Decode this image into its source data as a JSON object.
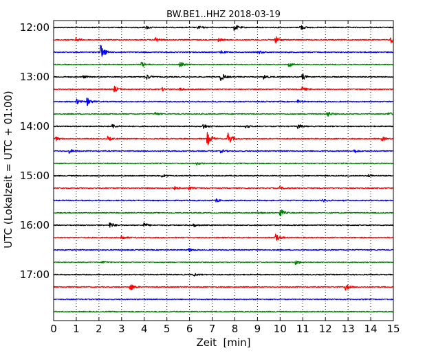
{
  "chart_data": {
    "type": "line",
    "title": "BW.BE1..HHZ 2018-03-19",
    "xlabel": "Zeit  [min]",
    "ylabel": "UTC (Lokalzeit = UTC + 01:00)",
    "xlim": [
      0,
      15
    ],
    "x_ticks": [
      "0",
      "1",
      "2",
      "3",
      "4",
      "5",
      "6",
      "7",
      "8",
      "9",
      "10",
      "11",
      "12",
      "13",
      "14",
      "15"
    ],
    "y_tick_labels": [
      "12:00",
      "13:00",
      "14:00",
      "15:00",
      "16:00",
      "17:00"
    ],
    "grid": "vertical dotted",
    "trace_interval_min": 15,
    "colors": [
      "#000000",
      "#ff0000",
      "#0000ff",
      "#008000"
    ],
    "series": [
      {
        "start": "12:00",
        "color": "#000000",
        "events": [
          {
            "t": 4.1,
            "a": 2
          },
          {
            "t": 6.4,
            "a": 2
          },
          {
            "t": 8.0,
            "a": 4
          },
          {
            "t": 10.9,
            "a": 4
          }
        ]
      },
      {
        "start": "12:15",
        "color": "#ff0000",
        "events": [
          {
            "t": 1.0,
            "a": 3
          },
          {
            "t": 4.5,
            "a": 3
          },
          {
            "t": 7.3,
            "a": 2
          },
          {
            "t": 9.8,
            "a": 5
          },
          {
            "t": 14.9,
            "a": 4
          }
        ]
      },
      {
        "start": "12:30",
        "color": "#0000ff",
        "events": [
          {
            "t": 2.1,
            "a": 10
          },
          {
            "t": 7.4,
            "a": 2
          },
          {
            "t": 9.1,
            "a": 2
          }
        ]
      },
      {
        "start": "12:45",
        "color": "#008000",
        "events": [
          {
            "t": 3.9,
            "a": 3
          },
          {
            "t": 5.6,
            "a": 3
          },
          {
            "t": 10.4,
            "a": 3
          }
        ]
      },
      {
        "start": "13:00",
        "color": "#000000",
        "events": [
          {
            "t": 1.3,
            "a": 2
          },
          {
            "t": 4.1,
            "a": 4
          },
          {
            "t": 7.4,
            "a": 6
          },
          {
            "t": 9.3,
            "a": 3
          },
          {
            "t": 11.0,
            "a": 4
          }
        ]
      },
      {
        "start": "13:15",
        "color": "#ff0000",
        "events": [
          {
            "t": 2.7,
            "a": 4
          },
          {
            "t": 4.8,
            "a": 2
          },
          {
            "t": 5.6,
            "a": 2
          },
          {
            "t": 11.0,
            "a": 3
          }
        ]
      },
      {
        "start": "13:30",
        "color": "#0000ff",
        "events": [
          {
            "t": 1.0,
            "a": 4
          },
          {
            "t": 1.5,
            "a": 5
          },
          {
            "t": 10.8,
            "a": 2
          }
        ]
      },
      {
        "start": "13:45",
        "color": "#008000",
        "events": [
          {
            "t": 4.5,
            "a": 2
          },
          {
            "t": 12.1,
            "a": 4
          },
          {
            "t": 14.8,
            "a": 2
          }
        ]
      },
      {
        "start": "14:00",
        "color": "#000000",
        "events": [
          {
            "t": 2.6,
            "a": 3
          },
          {
            "t": 6.6,
            "a": 4
          },
          {
            "t": 8.5,
            "a": 2
          },
          {
            "t": 10.8,
            "a": 3
          }
        ]
      },
      {
        "start": "14:15",
        "color": "#ff0000",
        "events": [
          {
            "t": 0.1,
            "a": 3
          },
          {
            "t": 2.4,
            "a": 3
          },
          {
            "t": 6.8,
            "a": 9
          },
          {
            "t": 7.7,
            "a": 10
          },
          {
            "t": 14.5,
            "a": 3
          }
        ]
      },
      {
        "start": "14:30",
        "color": "#0000ff",
        "events": [
          {
            "t": 0.7,
            "a": 3
          },
          {
            "t": 7.4,
            "a": 2
          },
          {
            "t": 13.3,
            "a": 2
          }
        ]
      },
      {
        "start": "14:45",
        "color": "#008000",
        "events": [
          {
            "t": 6.3,
            "a": 2
          }
        ]
      },
      {
        "start": "15:00",
        "color": "#000000",
        "events": [
          {
            "t": 4.8,
            "a": 2
          },
          {
            "t": 13.9,
            "a": 2
          }
        ]
      },
      {
        "start": "15:15",
        "color": "#ff0000",
        "events": [
          {
            "t": 5.3,
            "a": 3
          },
          {
            "t": 6.0,
            "a": 2
          },
          {
            "t": 10.0,
            "a": 2
          }
        ]
      },
      {
        "start": "15:30",
        "color": "#0000ff",
        "events": [
          {
            "t": 7.2,
            "a": 2
          },
          {
            "t": 11.9,
            "a": 2
          }
        ]
      },
      {
        "start": "15:45",
        "color": "#008000",
        "events": [
          {
            "t": 9.0,
            "a": 2
          },
          {
            "t": 10.0,
            "a": 6
          }
        ]
      },
      {
        "start": "16:00",
        "color": "#000000",
        "events": [
          {
            "t": 2.5,
            "a": 4
          },
          {
            "t": 4.0,
            "a": 3
          },
          {
            "t": 6.2,
            "a": 2
          }
        ]
      },
      {
        "start": "16:15",
        "color": "#ff0000",
        "events": [
          {
            "t": 3.0,
            "a": 3
          },
          {
            "t": 9.8,
            "a": 6
          }
        ]
      },
      {
        "start": "16:30",
        "color": "#0000ff",
        "events": [
          {
            "t": 6.0,
            "a": 2
          }
        ]
      },
      {
        "start": "16:45",
        "color": "#008000",
        "events": [
          {
            "t": 2.2,
            "a": 2
          },
          {
            "t": 10.7,
            "a": 3
          }
        ]
      },
      {
        "start": "17:00",
        "color": "#000000",
        "events": [
          {
            "t": 6.2,
            "a": 2
          }
        ]
      },
      {
        "start": "17:15",
        "color": "#ff0000",
        "events": [
          {
            "t": 3.4,
            "a": 5
          },
          {
            "t": 12.9,
            "a": 4
          }
        ]
      },
      {
        "start": "17:30",
        "color": "#0000ff",
        "events": []
      },
      {
        "start": "17:45",
        "color": "#008000",
        "events": []
      }
    ]
  }
}
